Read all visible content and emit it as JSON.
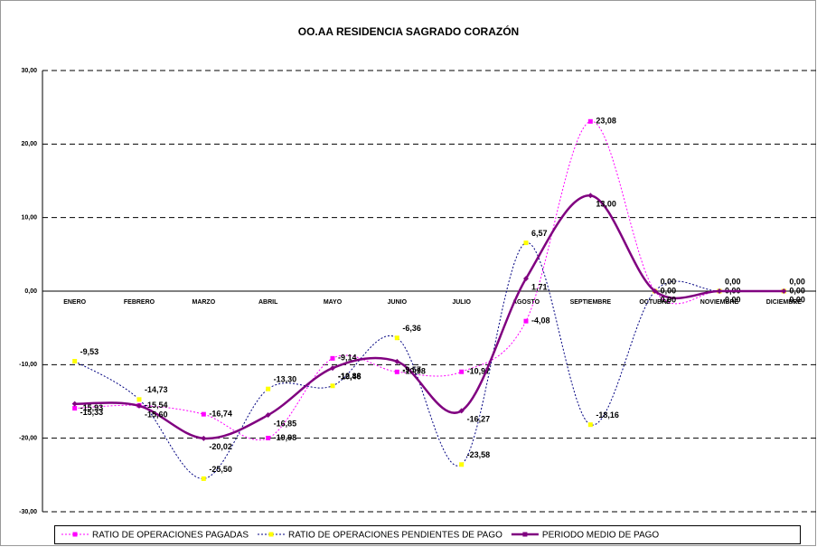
{
  "chart_data": {
    "type": "line",
    "title": "OO.AA RESIDENCIA SAGRADO CORAZÓN",
    "categories": [
      "ENERO",
      "FEBRERO",
      "MARZO",
      "ABRIL",
      "MAYO",
      "JUNIO",
      "JULIO",
      "AGOSTO",
      "SEPTIEMBRE",
      "OCTUBRE",
      "NOVIEMBRE",
      "DICIEMBRE"
    ],
    "series": [
      {
        "name": "RATIO DE OPERACIONES PAGADAS",
        "color": "#ff00ff",
        "marker_color": "#ff00ff",
        "dash": "dotted",
        "values": [
          -15.93,
          -15.54,
          -16.74,
          -19.98,
          -9.14,
          -10.98,
          -10.97,
          -4.08,
          23.08,
          0,
          0,
          0
        ],
        "value_labels": [
          "-15,93",
          "-15,54",
          "-16,74",
          "-19,98",
          "-9,14",
          "-10,98",
          "-10,97",
          "-4,08",
          "23,08",
          "0,00",
          "0,00",
          "0,00"
        ]
      },
      {
        "name": "RATIO DE OPERACIONES PENDIENTES DE PAGO",
        "color": "#000080",
        "marker_color": "#ffff00",
        "dash": "dotted",
        "values": [
          -9.53,
          -14.73,
          -25.5,
          -13.3,
          -12.88,
          -6.36,
          -23.58,
          6.57,
          -18.16,
          0,
          0,
          0
        ],
        "value_labels": [
          "-9,53",
          "-14,73",
          "-25,50",
          "-13,30",
          "-12,88",
          "-6,36",
          "-23,58",
          "6,57",
          "-18,16",
          "0,00",
          "0,00",
          "0,00"
        ]
      },
      {
        "name": "PERIODO MEDIO DE PAGO",
        "color": "#800080",
        "marker_color": "#800080",
        "dash": "solid",
        "values": [
          -15.33,
          -15.6,
          -20.02,
          -16.85,
          -10.46,
          -9.57,
          -16.27,
          1.71,
          13.0,
          0,
          0,
          0
        ],
        "value_labels": [
          "-15,33",
          "-15,60",
          "-20,02",
          "-16,85",
          "-10,46",
          "-9,57",
          "-16,27",
          "1,71",
          "13,00",
          "0,00",
          "0,00",
          "0,00"
        ]
      }
    ],
    "ylim": [
      -30,
      30
    ],
    "yticks": [
      {
        "value": -30,
        "label": "-30,00"
      },
      {
        "value": -20,
        "label": "-20,00"
      },
      {
        "value": -10,
        "label": "-10,00"
      },
      {
        "value": 0,
        "label": "0,00"
      },
      {
        "value": 10,
        "label": "10,00"
      },
      {
        "value": 20,
        "label": "20,00"
      },
      {
        "value": 30,
        "label": "30,00"
      }
    ],
    "grid": true,
    "smooth": true,
    "legend": "bottom"
  }
}
